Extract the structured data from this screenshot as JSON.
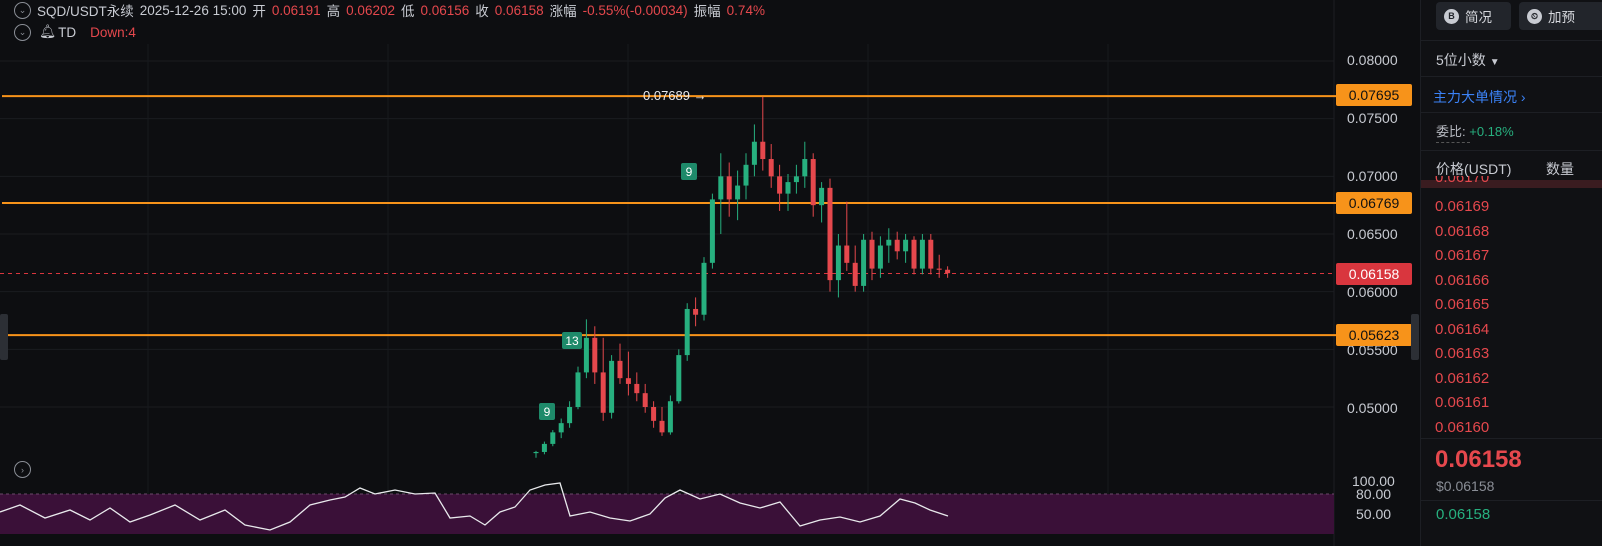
{
  "header": {
    "symbol": "SQD/USDT永续",
    "datetime": "2025-12-26 15:00",
    "open_label": "开",
    "open": "0.06191",
    "high_label": "高",
    "high": "0.06202",
    "low_label": "低",
    "low": "0.06156",
    "close_label": "收",
    "close": "0.06158",
    "change_label": "涨幅",
    "change": "-0.55%(-0.00034)",
    "amplitude_label": "振幅",
    "amplitude": "0.74%"
  },
  "indicator": {
    "name": "TD",
    "value": "Down:4"
  },
  "price_axis": {
    "ticks": [
      "0.08000",
      "0.07500",
      "0.07000",
      "0.06500",
      "0.06000",
      "0.05500",
      "0.05000"
    ],
    "lower_ticks": [
      "100.00",
      "80.00",
      "50.00"
    ]
  },
  "levels": [
    {
      "label": "0.07695"
    },
    {
      "label": "0.06769"
    },
    {
      "label": "0.05623"
    }
  ],
  "current_price": {
    "label": "0.06158"
  },
  "high_marker": {
    "label": "0.07689 →"
  },
  "td_marks": [
    "9",
    "13",
    "9"
  ],
  "side": {
    "brief_button": "简况",
    "add_button": "加预",
    "decimals": "5位小数",
    "big_orders": "主力大单情况",
    "ratio_label": "委比:",
    "ratio_value": "+0.18%",
    "col_price": "价格(USDT)",
    "col_qty": "数量",
    "asks": [
      "0.06170",
      "0.06169",
      "0.06168",
      "0.06167",
      "0.06166",
      "0.06165",
      "0.06164",
      "0.06163",
      "0.06162",
      "0.06161",
      "0.06160"
    ],
    "last_price": "0.06158",
    "last_price_usd": "$0.06158",
    "bid_first": "0.06158"
  },
  "colors": {
    "up": "#27b07f",
    "down": "#e5484d",
    "level": "#f7931a",
    "rsi_fill": "#3a1038"
  },
  "chart_data": {
    "type": "candlestick",
    "ylim": [
      0.0455,
      0.0815
    ],
    "candles": [
      [
        0.046,
        0.0462,
        0.0456,
        0.0461
      ],
      [
        0.0461,
        0.047,
        0.0459,
        0.0468
      ],
      [
        0.0468,
        0.048,
        0.0466,
        0.0478
      ],
      [
        0.0478,
        0.049,
        0.0473,
        0.0486
      ],
      [
        0.0486,
        0.0505,
        0.0482,
        0.05
      ],
      [
        0.05,
        0.0535,
        0.0498,
        0.053
      ],
      [
        0.053,
        0.0576,
        0.0525,
        0.056
      ],
      [
        0.056,
        0.057,
        0.052,
        0.053
      ],
      [
        0.053,
        0.056,
        0.0488,
        0.0495
      ],
      [
        0.0495,
        0.0545,
        0.049,
        0.054
      ],
      [
        0.054,
        0.0555,
        0.052,
        0.0525
      ],
      [
        0.0525,
        0.0548,
        0.051,
        0.052
      ],
      [
        0.052,
        0.053,
        0.0505,
        0.0512
      ],
      [
        0.0512,
        0.052,
        0.0495,
        0.05
      ],
      [
        0.05,
        0.0505,
        0.0482,
        0.0488
      ],
      [
        0.0488,
        0.05,
        0.0475,
        0.0478
      ],
      [
        0.0478,
        0.051,
        0.0476,
        0.0505
      ],
      [
        0.0505,
        0.055,
        0.0503,
        0.0545
      ],
      [
        0.0545,
        0.059,
        0.054,
        0.0585
      ],
      [
        0.0585,
        0.0595,
        0.057,
        0.058
      ],
      [
        0.058,
        0.063,
        0.0575,
        0.0625
      ],
      [
        0.0625,
        0.0685,
        0.062,
        0.068
      ],
      [
        0.068,
        0.072,
        0.065,
        0.07
      ],
      [
        0.07,
        0.0712,
        0.0665,
        0.068
      ],
      [
        0.068,
        0.0705,
        0.0662,
        0.0692
      ],
      [
        0.0692,
        0.072,
        0.068,
        0.071
      ],
      [
        0.071,
        0.0745,
        0.07,
        0.073
      ],
      [
        0.073,
        0.0769,
        0.0705,
        0.0715
      ],
      [
        0.0715,
        0.0728,
        0.069,
        0.07
      ],
      [
        0.07,
        0.071,
        0.067,
        0.0685
      ],
      [
        0.0685,
        0.0702,
        0.067,
        0.0695
      ],
      [
        0.0695,
        0.071,
        0.0685,
        0.07
      ],
      [
        0.07,
        0.073,
        0.069,
        0.0715
      ],
      [
        0.0715,
        0.072,
        0.0665,
        0.0675
      ],
      [
        0.0675,
        0.0695,
        0.066,
        0.069
      ],
      [
        0.069,
        0.0698,
        0.06,
        0.061
      ],
      [
        0.061,
        0.065,
        0.0595,
        0.064
      ],
      [
        0.064,
        0.0678,
        0.0618,
        0.0625
      ],
      [
        0.0625,
        0.064,
        0.06,
        0.0605
      ],
      [
        0.0605,
        0.065,
        0.06,
        0.0645
      ],
      [
        0.0645,
        0.0652,
        0.061,
        0.062
      ],
      [
        0.062,
        0.0648,
        0.0612,
        0.064
      ],
      [
        0.064,
        0.0655,
        0.0625,
        0.0645
      ],
      [
        0.0645,
        0.0652,
        0.0628,
        0.0635
      ],
      [
        0.0635,
        0.065,
        0.0625,
        0.0645
      ],
      [
        0.0645,
        0.0648,
        0.0615,
        0.062
      ],
      [
        0.062,
        0.065,
        0.0615,
        0.0645
      ],
      [
        0.0645,
        0.065,
        0.0615,
        0.062
      ],
      [
        0.062,
        0.0632,
        0.0612,
        0.0619
      ],
      [
        0.0619,
        0.0622,
        0.0612,
        0.0616
      ]
    ]
  }
}
